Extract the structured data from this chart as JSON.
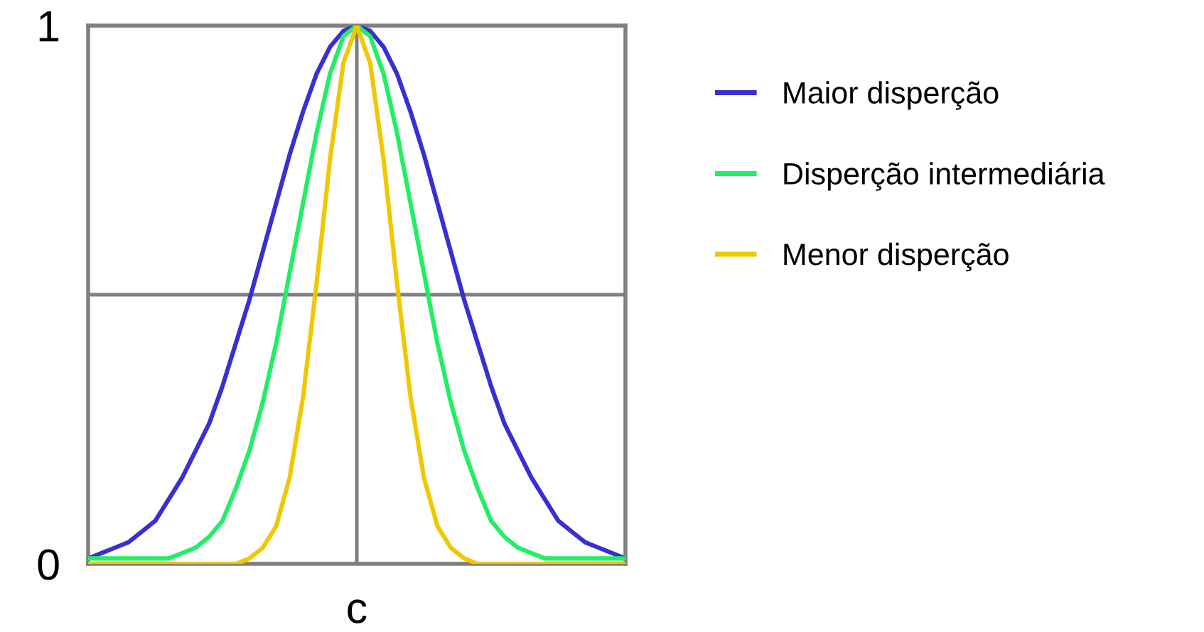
{
  "chart_data": {
    "type": "line",
    "categories": [
      null,
      null,
      null,
      null,
      null,
      null,
      null,
      null,
      null,
      null,
      null,
      null,
      null,
      null,
      null,
      null,
      null,
      null,
      null,
      null,
      "c",
      null,
      null,
      null,
      null,
      null,
      null,
      null,
      null,
      null,
      null,
      null,
      null,
      null,
      null,
      null,
      null,
      null,
      null,
      null,
      null
    ],
    "series": [
      {
        "name": "Maior disperção",
        "color": "#3a2fd0",
        "values": [
          0.01,
          0.02,
          0.03,
          0.04,
          0.06,
          0.08,
          0.12,
          0.16,
          0.21,
          0.26,
          0.33,
          0.41,
          0.49,
          0.58,
          0.67,
          0.76,
          0.84,
          0.91,
          0.96,
          0.99,
          1,
          0.99,
          0.96,
          0.91,
          0.84,
          0.76,
          0.67,
          0.58,
          0.49,
          0.41,
          0.33,
          0.26,
          0.21,
          0.16,
          0.12,
          0.08,
          0.06,
          0.04,
          0.03,
          0.02,
          0.01
        ]
      },
      {
        "name": "Disperção intermediária",
        "color": "#22ee66",
        "values": [
          0.01,
          0.01,
          0.01,
          0.01,
          0.01,
          0.01,
          0.01,
          0.02,
          0.03,
          0.05,
          0.08,
          0.14,
          0.21,
          0.3,
          0.41,
          0.54,
          0.67,
          0.8,
          0.91,
          0.98,
          1,
          0.98,
          0.91,
          0.8,
          0.67,
          0.54,
          0.41,
          0.3,
          0.21,
          0.14,
          0.08,
          0.05,
          0.03,
          0.02,
          0.01,
          0.01,
          0.01,
          0.01,
          0.01,
          0.01,
          0.01
        ]
      },
      {
        "name": "Menor disperção",
        "color": "#f0c800",
        "values": [
          0,
          0,
          0,
          0,
          0,
          0,
          0,
          0,
          0,
          0,
          0,
          0,
          0.01,
          0.03,
          0.07,
          0.16,
          0.31,
          0.52,
          0.75,
          0.93,
          1,
          0.93,
          0.75,
          0.52,
          0.31,
          0.16,
          0.07,
          0.03,
          0.01,
          0,
          0,
          0,
          0,
          0,
          0,
          0,
          0,
          0,
          0,
          0,
          0
        ]
      }
    ],
    "ylim": [
      0,
      1
    ],
    "yticks": [
      0,
      {
        "value": 0.5,
        "label": null
      },
      1
    ],
    "grid": true,
    "legend": "right",
    "marker": "none",
    "line_style": "solid"
  }
}
